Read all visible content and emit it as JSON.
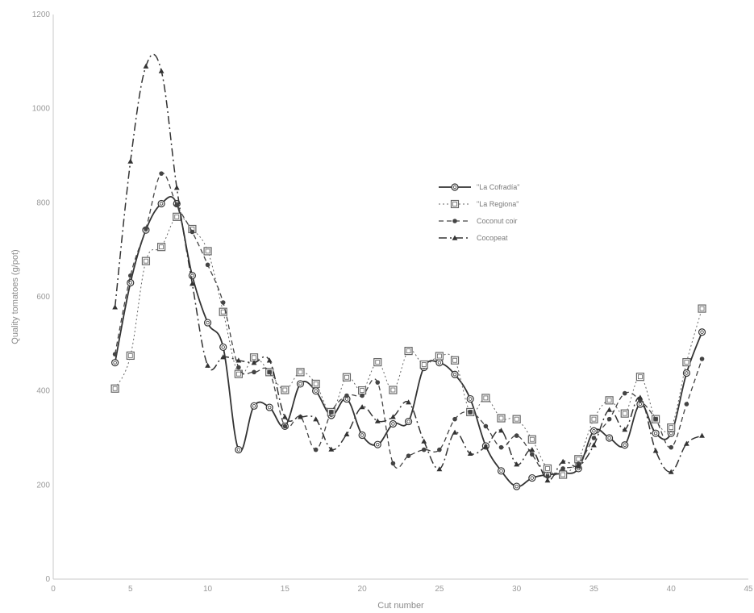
{
  "chart_data": {
    "type": "line",
    "xlabel": "Cut number",
    "ylabel": "Quality tomatoes (g/pot)",
    "xlim": [
      0,
      45
    ],
    "ylim": [
      0,
      1200
    ],
    "xticks": [
      "0",
      "5",
      "10",
      "15",
      "20",
      "25",
      "30",
      "35",
      "40",
      "45"
    ],
    "yticks": [
      "0",
      "200",
      "400",
      "600",
      "800",
      "1000",
      "1200"
    ],
    "grid": false,
    "legend_position": "center-right",
    "x": [
      4,
      5,
      6,
      7,
      8,
      9,
      10,
      11,
      12,
      13,
      14,
      15,
      16,
      17,
      18,
      19,
      20,
      21,
      22,
      23,
      24,
      25,
      26,
      27,
      28,
      29,
      30,
      31,
      32,
      33,
      34,
      35,
      36,
      37,
      38,
      39,
      40,
      41,
      42
    ],
    "series": [
      {
        "name": "\"La Cofradía\"",
        "marker": "open-circle",
        "line": "solid",
        "color": "#333333",
        "values": [
          460,
          630,
          742,
          798,
          798,
          645,
          545,
          493,
          275,
          368,
          365,
          325,
          415,
          400,
          348,
          383,
          306,
          286,
          330,
          335,
          450,
          460,
          435,
          383,
          283,
          230,
          197,
          215,
          222,
          225,
          235,
          315,
          300,
          285,
          372,
          310,
          310,
          438,
          525
        ]
      },
      {
        "name": "\"La Regiona\"",
        "marker": "open-square",
        "line": "dotted",
        "color": "#666666",
        "values": [
          405,
          475,
          676,
          706,
          770,
          744,
          697,
          568,
          436,
          471,
          440,
          402,
          440,
          415,
          355,
          429,
          401,
          461,
          402,
          485,
          456,
          474,
          465,
          355,
          385,
          342,
          340,
          297,
          235,
          222,
          255,
          340,
          380,
          352,
          430,
          340,
          322,
          461,
          575
        ]
      },
      {
        "name": "Coconut coir",
        "marker": "filled-circle",
        "line": "dashed",
        "color": "#444444",
        "values": [
          478,
          645,
          745,
          862,
          795,
          738,
          668,
          588,
          450,
          440,
          440,
          325,
          345,
          275,
          355,
          390,
          390,
          418,
          246,
          262,
          275,
          275,
          340,
          355,
          325,
          280,
          305,
          265,
          218,
          235,
          245,
          300,
          340,
          395,
          380,
          340,
          280,
          372,
          468
        ]
      },
      {
        "name": "Cocopeat",
        "marker": "filled-triangle",
        "line": "dash-dot",
        "color": "#333333",
        "values": [
          578,
          888,
          1090,
          1080,
          832,
          628,
          454,
          472,
          465,
          460,
          465,
          345,
          345,
          340,
          276,
          308,
          366,
          336,
          345,
          376,
          293,
          234,
          312,
          267,
          282,
          316,
          244,
          275,
          210,
          250,
          240,
          285,
          360,
          318,
          386,
          273,
          228,
          288,
          305
        ]
      }
    ]
  }
}
